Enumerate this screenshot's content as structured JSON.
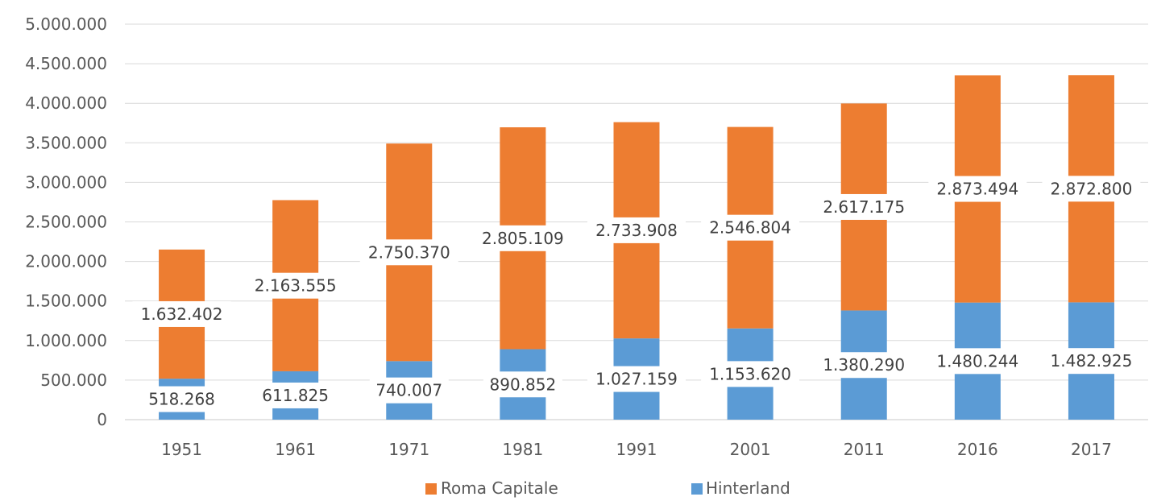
{
  "chart_data": {
    "type": "bar",
    "stacked": true,
    "categories": [
      "1951",
      "1961",
      "1971",
      "1981",
      "1991",
      "2001",
      "2011",
      "2016",
      "2017"
    ],
    "series": [
      {
        "name": "Hinterland",
        "color": "#5B9BD5",
        "values": [
          518268,
          611825,
          740007,
          890852,
          1027159,
          1153620,
          1380290,
          1480244,
          1482925
        ],
        "labels": [
          "518.268",
          "611.825",
          "740.007",
          "890.852",
          "1.027.159",
          "1.153.620",
          "1.380.290",
          "1.480.244",
          "1.482.925"
        ]
      },
      {
        "name": "Roma Capitale",
        "color": "#ED7D31",
        "values": [
          1632402,
          2163555,
          2750370,
          2805109,
          2733908,
          2546804,
          2617175,
          2873494,
          2872800
        ],
        "labels": [
          "1.632.402",
          "2.163.555",
          "2.750.370",
          "2.805.109",
          "2.733.908",
          "2.546.804",
          "2.617.175",
          "2.873.494",
          "2.872.800"
        ]
      }
    ],
    "y_ticks": [
      "0",
      "500.000",
      "1.000.000",
      "1.500.000",
      "2.000.000",
      "2.500.000",
      "3.000.000",
      "3.500.000",
      "4.000.000",
      "4.500.000",
      "5.000.000"
    ],
    "ylim": [
      0,
      5000000
    ],
    "grid": true,
    "legend_position": "bottom",
    "legend": [
      "Roma Capitale",
      "Hinterland"
    ],
    "title": "",
    "xlabel": "",
    "ylabel": ""
  }
}
